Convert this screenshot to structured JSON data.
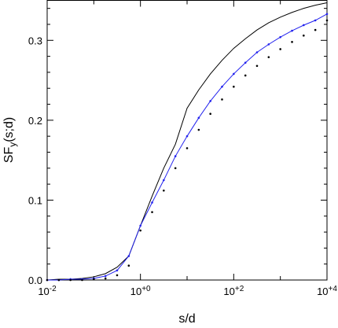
{
  "chart_data": {
    "type": "line",
    "xlabel": "s/d",
    "ylabel": {
      "text": "SF",
      "sub": "y",
      "rest": "(s;d)"
    },
    "log_x": true,
    "x": [
      0.01,
      0.0178,
      0.0316,
      0.0562,
      0.1,
      0.178,
      0.316,
      0.562,
      1,
      1.78,
      3.16,
      5.62,
      10,
      17.8,
      31.6,
      56.2,
      100,
      178,
      316,
      562,
      1000,
      1780,
      3160,
      5620,
      10000
    ],
    "series": [
      {
        "name": "black line",
        "color": "#000000",
        "style": "line",
        "values": [
          0.0,
          0.001,
          0.001,
          0.002,
          0.004,
          0.008,
          0.016,
          0.03,
          0.068,
          0.105,
          0.14,
          0.17,
          0.215,
          0.238,
          0.258,
          0.275,
          0.29,
          0.302,
          0.313,
          0.322,
          0.329,
          0.335,
          0.34,
          0.344,
          0.347
        ]
      },
      {
        "name": "blue line",
        "color": "#2222ee",
        "style": "line",
        "values": [
          0.0,
          0.0,
          0.001,
          0.001,
          0.002,
          0.005,
          0.012,
          0.03,
          0.068,
          0.097,
          0.125,
          0.155,
          0.18,
          0.203,
          0.224,
          0.242,
          0.258,
          0.272,
          0.285,
          0.295,
          0.304,
          0.312,
          0.319,
          0.325,
          0.333
        ]
      },
      {
        "name": "blue dots",
        "color": "#2222ee",
        "style": "dots",
        "values": [
          0.0,
          0.0,
          0.001,
          0.001,
          0.002,
          0.005,
          0.012,
          0.03,
          0.068,
          0.097,
          0.125,
          0.155,
          0.18,
          0.203,
          0.224,
          0.242,
          0.258,
          0.272,
          0.285,
          0.295,
          0.304,
          0.312,
          0.319,
          0.325,
          0.333
        ]
      },
      {
        "name": "black dots",
        "color": "#000000",
        "style": "dots",
        "values": [
          0.0,
          0.0,
          0.0,
          0.0,
          0.001,
          0.002,
          0.006,
          0.018,
          0.062,
          0.085,
          0.112,
          0.14,
          0.165,
          0.188,
          0.208,
          0.226,
          0.242,
          0.256,
          0.268,
          0.279,
          0.289,
          0.298,
          0.306,
          0.313,
          0.325
        ]
      }
    ],
    "xlim": [
      0.01,
      10000
    ],
    "ylim": [
      0,
      0.35
    ],
    "xticks": [
      {
        "value": 0.01,
        "label": "10",
        "sup": "-2"
      },
      {
        "value": 1,
        "label": "10",
        "sup": "+0"
      },
      {
        "value": 100,
        "label": "10",
        "sup": "+2"
      },
      {
        "value": 10000,
        "label": "10",
        "sup": "+4"
      }
    ],
    "xminorticks": [
      0.1,
      10,
      1000
    ],
    "yticks": [
      {
        "value": 0,
        "label": "0.0"
      },
      {
        "value": 0.1,
        "label": "0.1"
      },
      {
        "value": 0.2,
        "label": "0.2"
      },
      {
        "value": 0.3,
        "label": "0.3"
      }
    ],
    "yminorticks": [
      0.02,
      0.04,
      0.06,
      0.08,
      0.12,
      0.14,
      0.16,
      0.18,
      0.22,
      0.24,
      0.26,
      0.28,
      0.32,
      0.34
    ]
  }
}
